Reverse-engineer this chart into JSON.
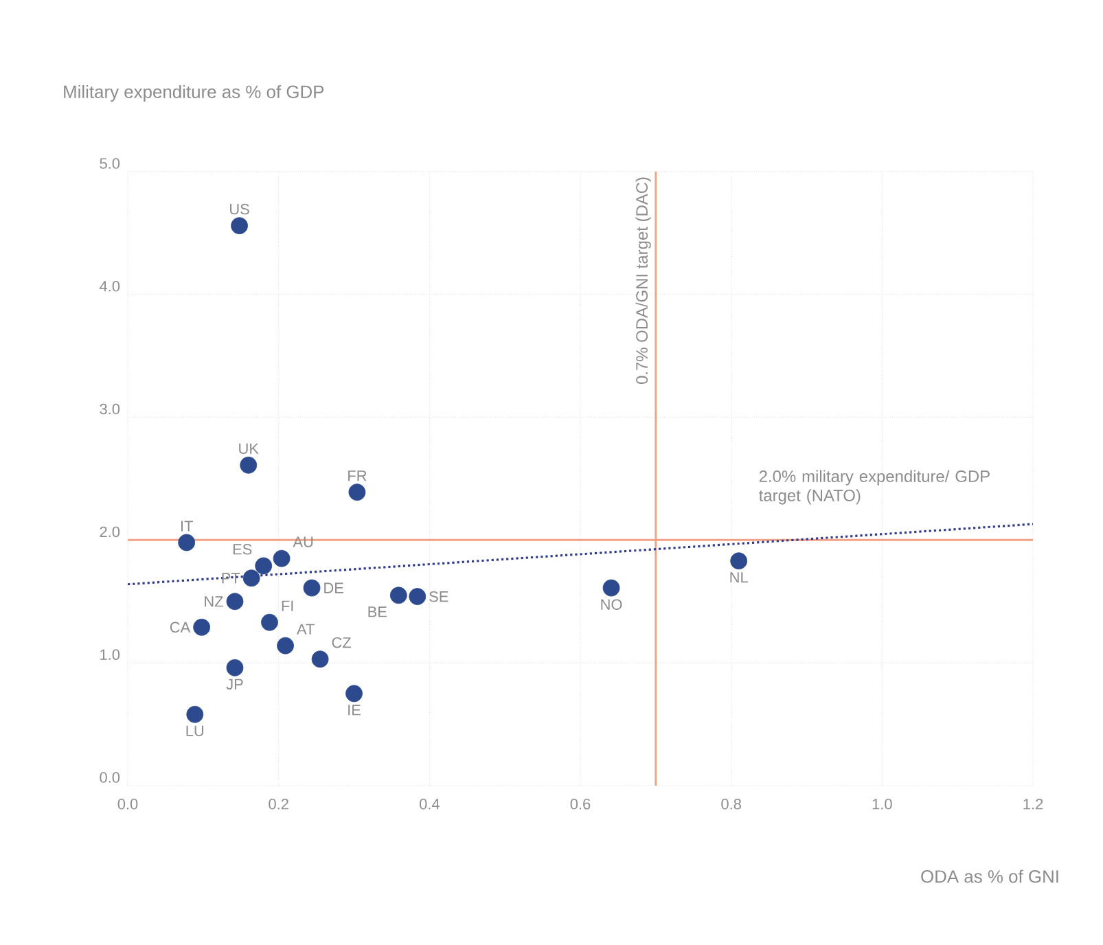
{
  "chart_data": {
    "type": "scatter",
    "xlabel": "ODA as % of GNI",
    "ylabel": "Military expenditure as % of GDP",
    "xlim": [
      0,
      1.2
    ],
    "ylim": [
      0,
      5
    ],
    "xticks": [
      {
        "value": 0,
        "label": "0.0"
      },
      0.2,
      0.4,
      0.6,
      0.8,
      {
        "value": 1,
        "label": "1.0"
      },
      1.2
    ],
    "yticks": [
      {
        "value": 0,
        "label": "0.0"
      },
      {
        "value": 1,
        "label": "1.0"
      },
      {
        "value": 2,
        "label": "2.0"
      },
      {
        "value": 3,
        "label": "3.0"
      },
      {
        "value": 4,
        "label": "4.0"
      },
      {
        "value": 5,
        "label": "5.0"
      }
    ],
    "grid": true,
    "marker": "circle",
    "series": [
      {
        "color": "#2e4a8f",
        "x": [
          0.148,
          0.16,
          0.304,
          0.078,
          0.204,
          0.18,
          0.164,
          0.244,
          0.359,
          0.384,
          0.641,
          0.81,
          0.142,
          0.188,
          0.098,
          0.209,
          0.255,
          0.142,
          0.3,
          0.089
        ],
        "values": [
          4.56,
          2.61,
          2.39,
          1.98,
          1.85,
          1.79,
          1.69,
          1.61,
          1.55,
          1.54,
          1.61,
          1.83,
          1.5,
          1.33,
          1.29,
          1.14,
          1.03,
          0.96,
          0.75,
          0.58
        ]
      },
      {
        "type": "line",
        "marker": "none",
        "color": "#2e3a8c",
        "line_style": "dotted",
        "x": [
          0,
          1.2
        ],
        "values": [
          1.64,
          2.13
        ]
      }
    ],
    "ref_lines": [
      {
        "axis": "x",
        "value": 0.7,
        "label": "0.7% ODA/GNI target (DAC)",
        "color": "#f4a284"
      },
      {
        "axis": "y",
        "value": 2.0,
        "label": "2.0% military expenditure/ GDP target (NATO)",
        "color": "#f4a284"
      }
    ],
    "annotations": [
      {
        "text": "US",
        "x": 0.148,
        "y": 4.56
      },
      {
        "text": "UK",
        "x": 0.16,
        "y": 2.61
      },
      {
        "text": "FR",
        "x": 0.304,
        "y": 2.39
      },
      {
        "text": "IT",
        "x": 0.078,
        "y": 1.98
      },
      {
        "text": "AU",
        "x": 0.204,
        "y": 1.85
      },
      {
        "text": "ES",
        "x": 0.18,
        "y": 1.79
      },
      {
        "text": "PT",
        "x": 0.164,
        "y": 1.69
      },
      {
        "text": "DE",
        "x": 0.244,
        "y": 1.61
      },
      {
        "text": "BE",
        "x": 0.359,
        "y": 1.55
      },
      {
        "text": "SE",
        "x": 0.384,
        "y": 1.54
      },
      {
        "text": "NO",
        "x": 0.641,
        "y": 1.61
      },
      {
        "text": "NL",
        "x": 0.81,
        "y": 1.83
      },
      {
        "text": "NZ",
        "x": 0.142,
        "y": 1.5
      },
      {
        "text": "FI",
        "x": 0.188,
        "y": 1.33
      },
      {
        "text": "CA",
        "x": 0.098,
        "y": 1.29
      },
      {
        "text": "AT",
        "x": 0.209,
        "y": 1.14
      },
      {
        "text": "CZ",
        "x": 0.255,
        "y": 1.03
      },
      {
        "text": "JP",
        "x": 0.142,
        "y": 0.96
      },
      {
        "text": "IE",
        "x": 0.3,
        "y": 0.75
      },
      {
        "text": "LU",
        "x": 0.089,
        "y": 0.58
      }
    ]
  }
}
